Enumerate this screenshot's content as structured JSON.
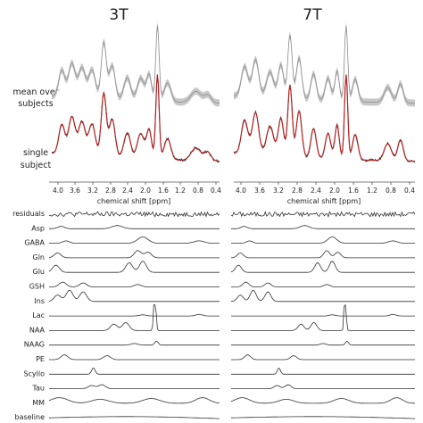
{
  "panels": [
    {
      "title": "3T",
      "xlabel": "chemical shift [ppm]",
      "ticks": [
        "4.0",
        "3.6",
        "3.2",
        "2.8",
        "2.4",
        "2.0",
        "1.6",
        "1.2",
        "0.8",
        "0.4"
      ]
    },
    {
      "title": "7T",
      "xlabel": "chemical shift [ppm]",
      "ticks": [
        "4.0",
        "3.6",
        "3.2",
        "2.8",
        "2.4",
        "2.0",
        "1.6",
        "1.2",
        "0.8",
        "0.4"
      ]
    }
  ],
  "row_labels": {
    "mean": [
      "mean over",
      "subjects"
    ],
    "single": [
      "single",
      "subject"
    ]
  },
  "components": [
    "residuals",
    "Asp",
    "GABA",
    "Gln",
    "Glu",
    "GSH",
    "Ins",
    "Lac",
    "NAA",
    "NAAG",
    "PE",
    "Scyllo",
    "Tau",
    "MM",
    "baseline"
  ],
  "colors": {
    "mean_band": "#c8c8c8",
    "mean_line": "#8c8c8c",
    "fit": "#b22222",
    "data": "#1a1a1a",
    "component": "#333333"
  }
}
